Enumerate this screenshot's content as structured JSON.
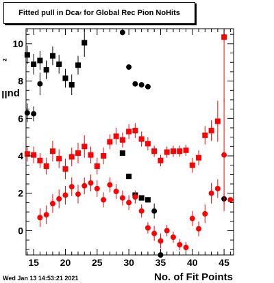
{
  "title": {
    "main": "Fitted pull in Dca",
    "sub": "z",
    "tail": " for Global Rec Pion NoHits"
  },
  "ylabel": {
    "main": "pull in Dca",
    "sub": "z"
  },
  "xlabel": "No. of Fit Points",
  "timestamp": "Wed Jan 13 14:53:21 2021",
  "chart_data": {
    "type": "scatter",
    "x_ticks": [
      "15",
      "20",
      "25",
      "30",
      "35",
      "40",
      "45"
    ],
    "y_ticks": [
      "0",
      "2",
      "4",
      "6",
      "8",
      "10"
    ],
    "xlim": [
      13.8,
      46.5
    ],
    "ylim": [
      -1.3,
      10.8
    ],
    "series": [
      {
        "marker": "square",
        "color": "#000000",
        "points": [
          {
            "x": 14,
            "y": 9.4,
            "e": 0.5
          },
          {
            "x": 15,
            "y": 8.9,
            "e": 0.55
          },
          {
            "x": 16,
            "y": 9.1,
            "e": 0.5
          },
          {
            "x": 17,
            "y": 8.6,
            "e": 0.45
          },
          {
            "x": 18,
            "y": 9.35,
            "e": 0.5
          },
          {
            "x": 19,
            "y": 8.9,
            "e": 0.5
          },
          {
            "x": 20,
            "y": 8.15,
            "e": 0.5
          },
          {
            "x": 21,
            "y": 7.8,
            "e": 0.55
          },
          {
            "x": 22,
            "y": 8.85,
            "e": 0.5
          },
          {
            "x": 23,
            "y": 10.05,
            "e": 0.75
          },
          {
            "x": 29,
            "y": 4.15,
            "e": 0.05
          },
          {
            "x": 30,
            "y": 2.9,
            "e": 0.05
          },
          {
            "x": 31,
            "y": 1.9,
            "e": 0.05
          },
          {
            "x": 32,
            "y": 1.75,
            "e": 0.05
          },
          {
            "x": 33,
            "y": 1.65,
            "e": 0.05
          }
        ]
      },
      {
        "marker": "circle",
        "color": "#000000",
        "points": [
          {
            "x": 14,
            "y": 6.3,
            "e": 0.5
          },
          {
            "x": 15,
            "y": 6.25,
            "e": 0.4
          },
          {
            "x": 16,
            "y": 7.85,
            "e": 0.6
          },
          {
            "x": 17,
            "y": 8.6,
            "e": 0.5
          },
          {
            "x": 29,
            "y": 10.6,
            "e": 0.1
          },
          {
            "x": 30,
            "y": 8.75,
            "e": 0.1
          },
          {
            "x": 31,
            "y": 7.85,
            "e": 0.05
          },
          {
            "x": 32,
            "y": 7.8,
            "e": 0.05
          },
          {
            "x": 33,
            "y": 7.7,
            "e": 0.05
          },
          {
            "x": 34,
            "y": 1.05,
            "e": 0.4
          },
          {
            "x": 35,
            "y": -1.3,
            "e": 0.2
          },
          {
            "x": 45,
            "y": 1.7,
            "e": 0.3
          }
        ]
      },
      {
        "marker": "square",
        "color": "#ff0000",
        "points": [
          {
            "x": 14,
            "y": 4.1,
            "e": 0.4
          },
          {
            "x": 15,
            "y": 4.05,
            "e": 0.45
          },
          {
            "x": 16,
            "y": 3.75,
            "e": 0.4
          },
          {
            "x": 17,
            "y": 3.45,
            "e": 0.45
          },
          {
            "x": 18,
            "y": 4.25,
            "e": 0.55
          },
          {
            "x": 19,
            "y": 3.85,
            "e": 0.5
          },
          {
            "x": 20,
            "y": 3.3,
            "e": 0.55
          },
          {
            "x": 21,
            "y": 3.95,
            "e": 0.5
          },
          {
            "x": 22,
            "y": 4.15,
            "e": 0.55
          },
          {
            "x": 23,
            "y": 4.5,
            "e": 0.6
          },
          {
            "x": 24,
            "y": 4.05,
            "e": 0.45
          },
          {
            "x": 25,
            "y": 3.45,
            "e": 0.45
          },
          {
            "x": 26,
            "y": 4.0,
            "e": 0.45
          },
          {
            "x": 27,
            "y": 4.75,
            "e": 0.4
          },
          {
            "x": 28,
            "y": 5.05,
            "e": 0.45
          },
          {
            "x": 29,
            "y": 4.85,
            "e": 0.4
          },
          {
            "x": 30,
            "y": 5.3,
            "e": 0.4
          },
          {
            "x": 31,
            "y": 5.35,
            "e": 0.4
          },
          {
            "x": 32,
            "y": 4.9,
            "e": 0.4
          },
          {
            "x": 33,
            "y": 4.65,
            "e": 0.35
          },
          {
            "x": 34,
            "y": 4.25,
            "e": 0.3
          },
          {
            "x": 35,
            "y": 3.75,
            "e": 0.3
          },
          {
            "x": 36,
            "y": 4.2,
            "e": 0.3
          },
          {
            "x": 37,
            "y": 4.25,
            "e": 0.3
          },
          {
            "x": 38,
            "y": 4.25,
            "e": 0.3
          },
          {
            "x": 39,
            "y": 4.3,
            "e": 0.3
          },
          {
            "x": 40,
            "y": 3.5,
            "e": 0.4
          },
          {
            "x": 41,
            "y": 3.9,
            "e": 0.4
          },
          {
            "x": 42,
            "y": 5.1,
            "e": 0.5
          },
          {
            "x": 43,
            "y": 5.35,
            "e": 0.55
          },
          {
            "x": 44,
            "y": 5.85,
            "e": 1.1
          },
          {
            "x": 45,
            "y": 10.35,
            "e": 3.5
          }
        ]
      },
      {
        "marker": "circle",
        "color": "#ff0000",
        "points": [
          {
            "x": 16,
            "y": 0.7,
            "e": 0.5
          },
          {
            "x": 17,
            "y": 0.85,
            "e": 0.5
          },
          {
            "x": 18,
            "y": 1.45,
            "e": 0.5
          },
          {
            "x": 19,
            "y": 1.7,
            "e": 0.5
          },
          {
            "x": 20,
            "y": 1.9,
            "e": 0.5
          },
          {
            "x": 21,
            "y": 2.35,
            "e": 0.5
          },
          {
            "x": 22,
            "y": 1.95,
            "e": 0.5
          },
          {
            "x": 23,
            "y": 2.4,
            "e": 0.45
          },
          {
            "x": 24,
            "y": 2.55,
            "e": 0.45
          },
          {
            "x": 25,
            "y": 2.25,
            "e": 0.45
          },
          {
            "x": 26,
            "y": 1.65,
            "e": 0.4
          },
          {
            "x": 27,
            "y": 2.45,
            "e": 0.4
          },
          {
            "x": 28,
            "y": 2.1,
            "e": 0.4
          },
          {
            "x": 29,
            "y": 1.75,
            "e": 0.4
          },
          {
            "x": 30,
            "y": 1.5,
            "e": 0.4
          },
          {
            "x": 31,
            "y": 1.8,
            "e": 0.35
          },
          {
            "x": 32,
            "y": 1.05,
            "e": 0.35
          },
          {
            "x": 33,
            "y": 0.15,
            "e": 0.3
          },
          {
            "x": 34,
            "y": -0.15,
            "e": 0.4
          },
          {
            "x": 35,
            "y": -0.55,
            "e": 0.4
          },
          {
            "x": 36,
            "y": 0.0,
            "e": 0.3
          },
          {
            "x": 37,
            "y": -0.35,
            "e": 0.3
          },
          {
            "x": 38,
            "y": -0.75,
            "e": 0.3
          },
          {
            "x": 39,
            "y": -0.9,
            "e": 0.3
          },
          {
            "x": 40,
            "y": 0.65,
            "e": 0.4
          },
          {
            "x": 41,
            "y": 0.1,
            "e": 0.4
          },
          {
            "x": 42,
            "y": 0.9,
            "e": 0.5
          },
          {
            "x": 43,
            "y": 2.0,
            "e": 0.55
          },
          {
            "x": 44,
            "y": 2.25,
            "e": 0.5
          },
          {
            "x": 45,
            "y": 4.05,
            "e": 3.0
          },
          {
            "x": 46,
            "y": 1.65,
            "e": 0.1
          }
        ]
      }
    ]
  }
}
